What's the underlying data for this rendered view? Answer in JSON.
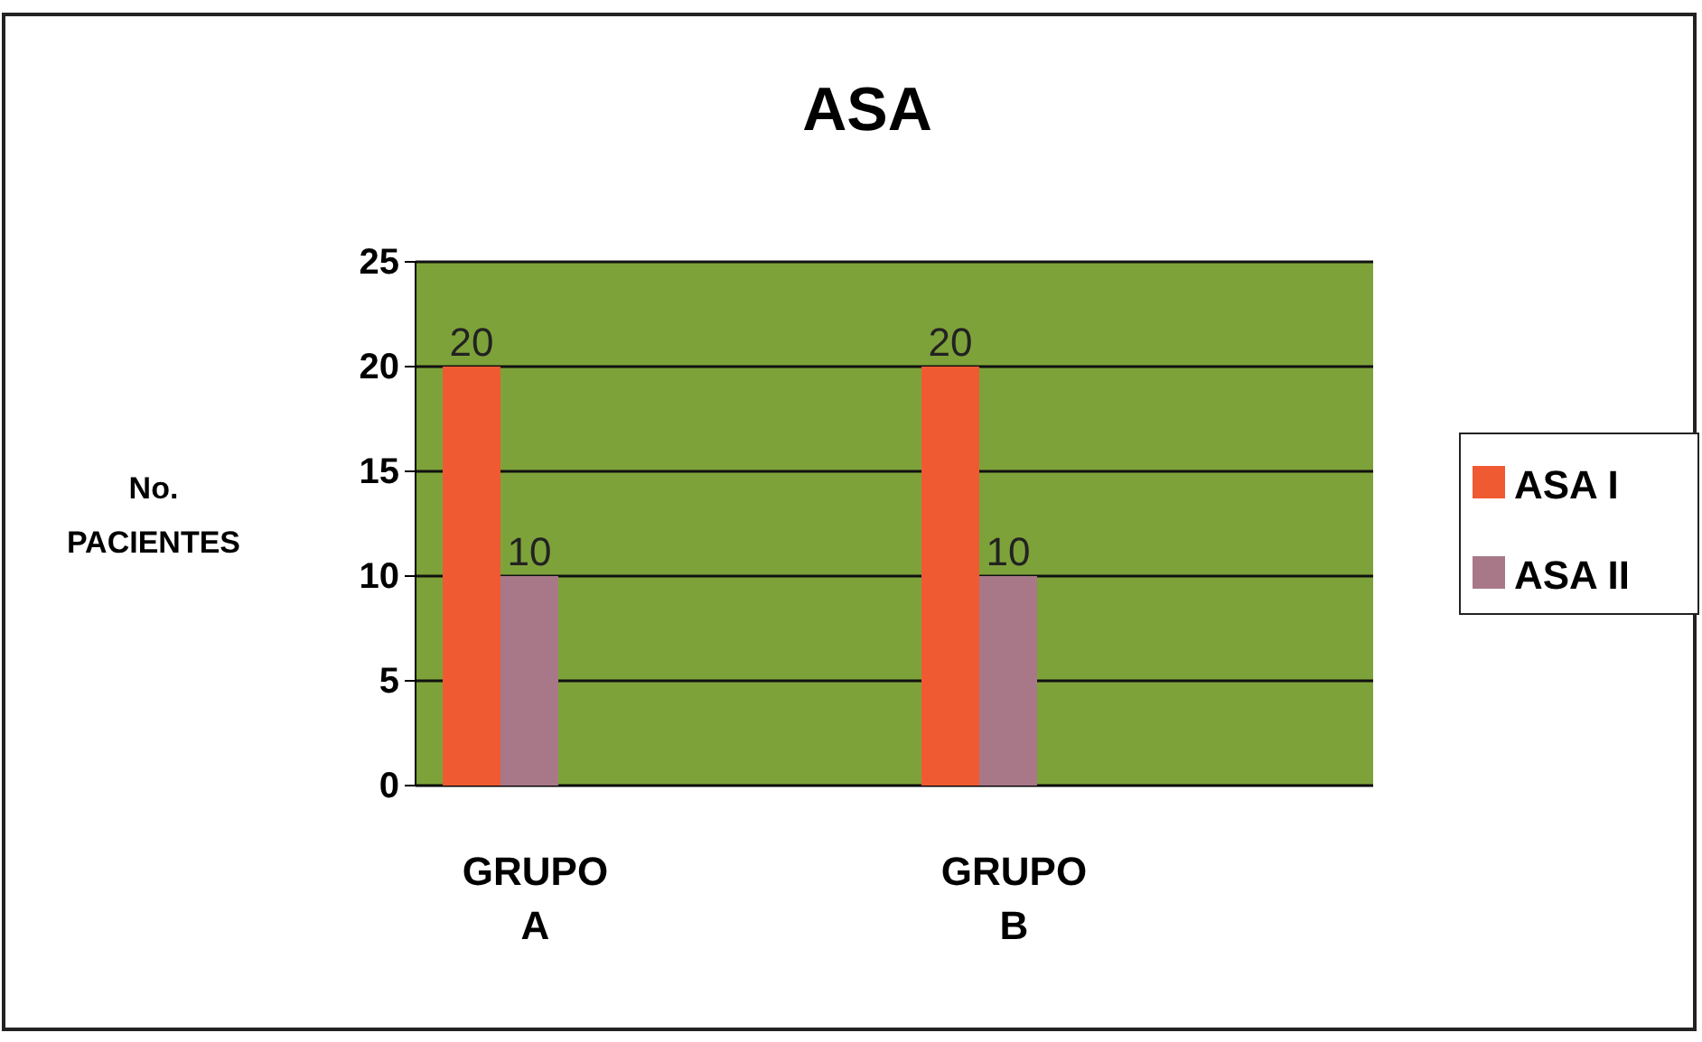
{
  "chart_data": {
    "type": "bar",
    "title": "ASA",
    "ylabel": "No. PACIENTES",
    "categories": [
      "GRUPO A",
      "GRUPO B"
    ],
    "series": [
      {
        "name": "ASA I",
        "color": "#f05a32",
        "values": [
          20,
          20
        ]
      },
      {
        "name": "ASA II",
        "color": "#a87888",
        "values": [
          10,
          10
        ]
      }
    ],
    "ylim": [
      0,
      25
    ],
    "yticks": [
      0,
      5,
      10,
      15,
      20,
      25
    ],
    "grid": "y",
    "legend": "right",
    "data_labels": true
  }
}
